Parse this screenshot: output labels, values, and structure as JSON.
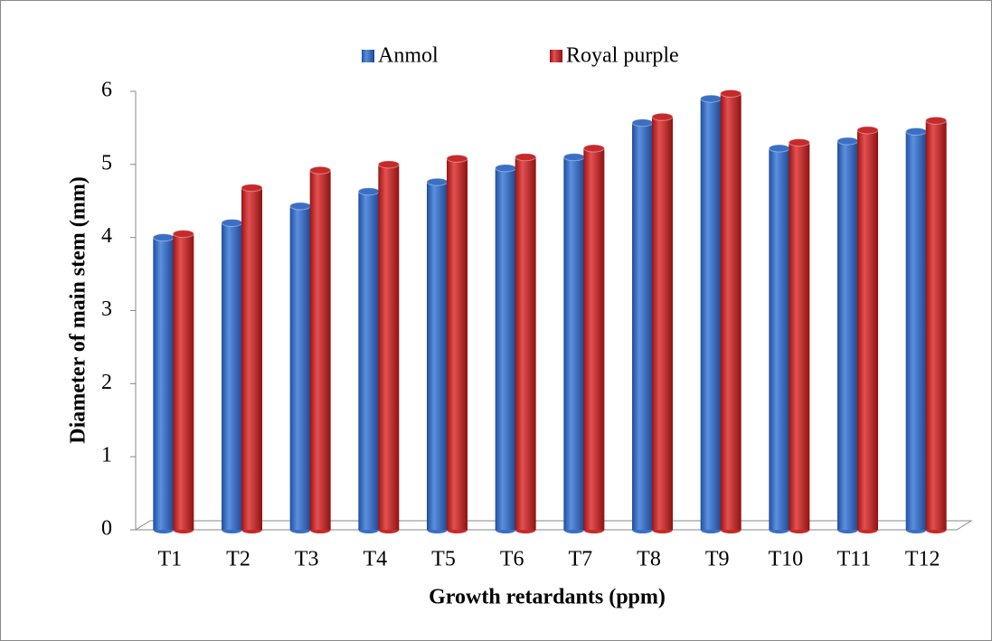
{
  "chart_data": {
    "type": "bar",
    "xlabel": "Growth retardants (ppm)",
    "ylabel": "Diameter of main stem (mm)",
    "categories": [
      "T1",
      "T2",
      "T3",
      "T4",
      "T5",
      "T6",
      "T7",
      "T8",
      "T9",
      "T10",
      "T11",
      "T12"
    ],
    "series": [
      {
        "name": "Anmol",
        "color": "#3a6fc4",
        "values": [
          4.0,
          4.2,
          4.43,
          4.63,
          4.76,
          4.95,
          5.1,
          5.57,
          5.9,
          5.22,
          5.32,
          5.45
        ]
      },
      {
        "name": "Royal purple",
        "color": "#c62a2a",
        "values": [
          4.05,
          4.68,
          4.92,
          5.0,
          5.08,
          5.1,
          5.22,
          5.65,
          5.97,
          5.3,
          5.47,
          5.6
        ]
      }
    ],
    "ylim": [
      0,
      6
    ],
    "yticks": [
      0,
      1,
      2,
      3,
      4,
      5,
      6
    ],
    "legend": "top"
  }
}
